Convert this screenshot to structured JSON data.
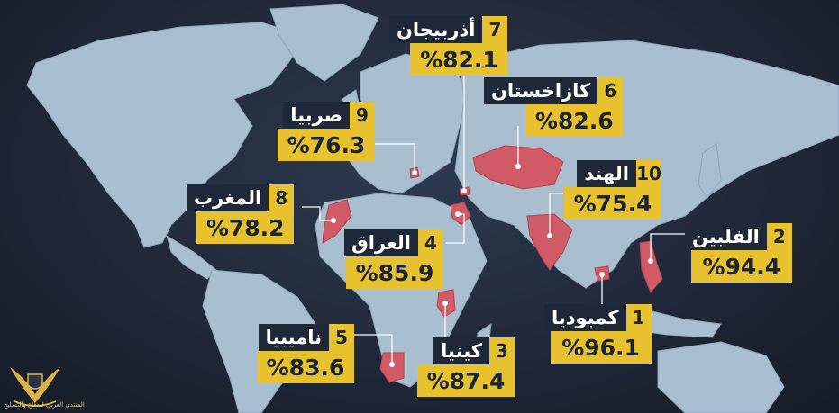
{
  "entries": [
    {
      "rank": "1",
      "country": "كمبوديا",
      "value": "%96.1",
      "percent": 96.1
    },
    {
      "rank": "2",
      "country": "الفلبين",
      "value": "%94.4",
      "percent": 94.4
    },
    {
      "rank": "3",
      "country": "كينيا",
      "value": "%87.4",
      "percent": 87.4
    },
    {
      "rank": "4",
      "country": "العراق",
      "value": "%85.9",
      "percent": 85.9
    },
    {
      "rank": "5",
      "country": "ناميبيا",
      "value": "%83.6",
      "percent": 83.6
    },
    {
      "rank": "6",
      "country": "كازاخستان",
      "value": "%82.6",
      "percent": 82.6
    },
    {
      "rank": "7",
      "country": "أذربيجان",
      "value": "%82.1",
      "percent": 82.1
    },
    {
      "rank": "8",
      "country": "المغرب",
      "value": "%78.2",
      "percent": 78.2
    },
    {
      "rank": "9",
      "country": "صربيا",
      "value": "%76.3",
      "percent": 76.3
    },
    {
      "rank": "10",
      "country": "الهند",
      "value": "%75.4",
      "percent": 75.4
    }
  ],
  "logo_text": "المنتدى العربي للدفاع والتسليح",
  "colors": {
    "highlight": "#d05a66",
    "label_yellow": "#e8c22e",
    "label_dark": "#1f2838",
    "land": "#a9bfd0"
  }
}
